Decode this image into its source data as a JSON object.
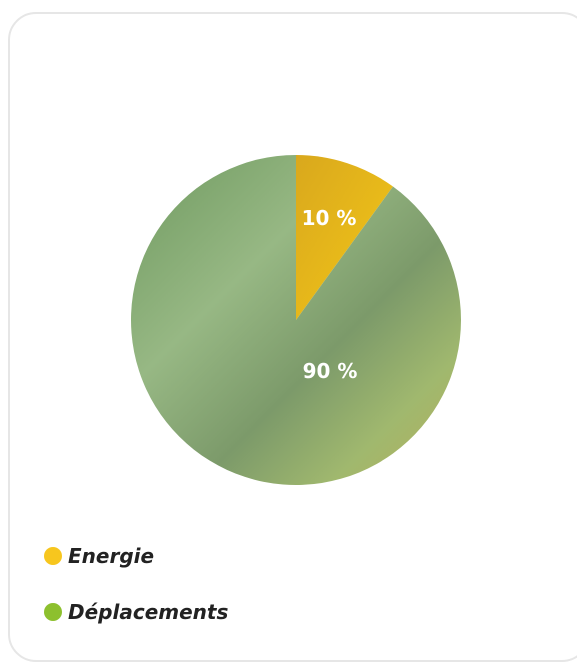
{
  "chart_data": {
    "type": "pie",
    "categories": [
      "Energie",
      "Déplacements"
    ],
    "values": [
      10,
      90
    ],
    "labels": [
      "10 %",
      "90 %"
    ],
    "colors": [
      "#e9b81a",
      "#8fb85c"
    ],
    "legend_position": "bottom-left",
    "legend_dot_colors": [
      "#f7c61e",
      "#8dc02e"
    ]
  },
  "legend": {
    "items": [
      {
        "label": "Energie"
      },
      {
        "label": "Déplacements"
      }
    ]
  }
}
